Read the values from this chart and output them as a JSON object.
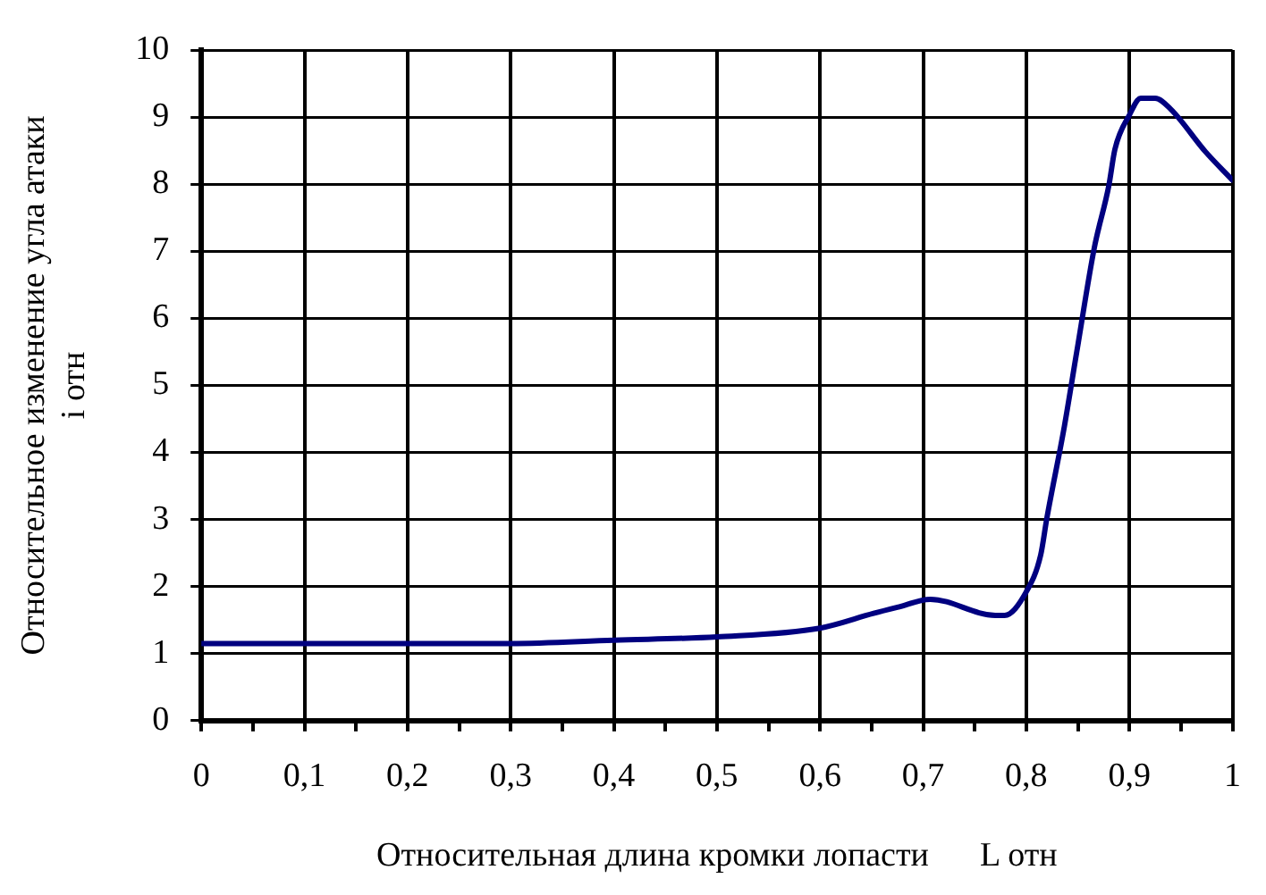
{
  "chart_data": {
    "type": "line",
    "xlabel": "Относительная длина кромки лопасти      L отн",
    "ylabel": "Относительное изменение угла атаки\ni отн",
    "xlim": [
      0,
      1
    ],
    "ylim": [
      0,
      10
    ],
    "xticks": [
      0,
      {
        "value": 0.05,
        "label": null
      },
      {
        "value": 0.1,
        "label": "0,1"
      },
      {
        "value": 0.15,
        "label": null
      },
      {
        "value": 0.2,
        "label": "0,2"
      },
      {
        "value": 0.25,
        "label": null
      },
      {
        "value": 0.3,
        "label": "0,3"
      },
      {
        "value": 0.35,
        "label": null
      },
      {
        "value": 0.4,
        "label": "0,4"
      },
      {
        "value": 0.45,
        "label": null
      },
      {
        "value": 0.5,
        "label": "0,5"
      },
      {
        "value": 0.55,
        "label": null
      },
      {
        "value": 0.6,
        "label": "0,6"
      },
      {
        "value": 0.65,
        "label": null
      },
      {
        "value": 0.7,
        "label": "0,7"
      },
      {
        "value": 0.75,
        "label": null
      },
      {
        "value": 0.8,
        "label": "0,8"
      },
      {
        "value": 0.85,
        "label": null
      },
      {
        "value": 0.9,
        "label": "0,9"
      },
      {
        "value": 0.95,
        "label": null
      },
      1
    ],
    "yticks": [
      0,
      1,
      2,
      3,
      4,
      5,
      6,
      7,
      8,
      9,
      10
    ],
    "grid": true,
    "legend": false,
    "marker": "none",
    "line_style": "solid",
    "series": [
      {
        "color": "#000080",
        "x": [
          0,
          0.1,
          0.2,
          0.3,
          0.4,
          0.5,
          0.6,
          0.652,
          0.675,
          0.707,
          0.77,
          0.779,
          0.8,
          0.814,
          0.82,
          0.837,
          0.849,
          0.866,
          0.88,
          0.886,
          0.9,
          0.911,
          0.925,
          0.94,
          0.974,
          1.0
        ],
        "values": [
          1.15,
          1.15,
          1.15,
          1.15,
          1.2,
          1.25,
          1.38,
          1.6,
          1.69,
          1.81,
          1.57,
          1.57,
          1.92,
          2.47,
          3.02,
          4.39,
          5.5,
          7.05,
          7.97,
          8.52,
          9.03,
          9.28,
          9.28,
          9.12,
          8.48,
          8.06
        ]
      }
    ]
  }
}
